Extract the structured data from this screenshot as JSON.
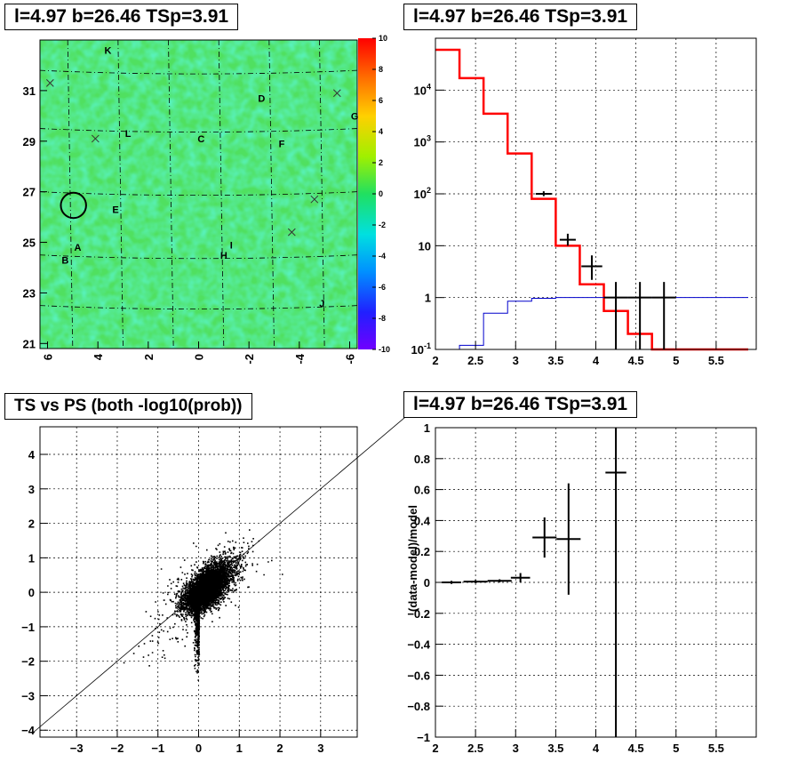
{
  "chart_data": [
    {
      "type": "heatmap",
      "title": "l=4.97 b=26.46 TSp=3.91",
      "xlabel": "",
      "ylabel": "",
      "xlim": [
        6.3,
        -6.3
      ],
      "ylim": [
        20.8,
        33.0
      ],
      "x_ticks": [
        "6",
        "4",
        "2",
        "0",
        "-2",
        "-4",
        "-6"
      ],
      "y_ticks": [
        "21",
        "23",
        "25",
        "27",
        "29",
        "31"
      ],
      "colorbar": {
        "min": -10,
        "max": 10,
        "ticks": [
          "10",
          "8",
          "6",
          "4",
          "2",
          "0",
          "-2",
          "-4",
          "-6",
          "-8",
          "-10"
        ]
      },
      "fill_level": 0.5,
      "sources": [
        {
          "label": "K",
          "l": 3.6,
          "b": 32.6
        },
        {
          "label": "D",
          "l": -2.5,
          "b": 30.7
        },
        {
          "label": "G",
          "l": -6.2,
          "b": 30.0
        },
        {
          "label": "L",
          "l": 2.8,
          "b": 29.3
        },
        {
          "label": "C",
          "l": -0.1,
          "b": 29.1
        },
        {
          "label": "F",
          "l": -3.3,
          "b": 28.9
        },
        {
          "label": "E",
          "l": 3.3,
          "b": 26.3
        },
        {
          "label": "A",
          "l": 4.8,
          "b": 24.8
        },
        {
          "label": "B",
          "l": 5.3,
          "b": 24.3
        },
        {
          "label": "I",
          "l": -1.3,
          "b": 24.9
        },
        {
          "label": "H",
          "l": -1.0,
          "b": 24.5
        },
        {
          "label": "J",
          "l": -4.9,
          "b": 22.6
        }
      ],
      "crosses": [
        {
          "l": 5.9,
          "b": 31.3
        },
        {
          "l": 4.1,
          "b": 29.1
        },
        {
          "l": -5.5,
          "b": 30.9
        },
        {
          "l": -4.6,
          "b": 26.7
        },
        {
          "l": -3.7,
          "b": 25.4
        }
      ],
      "circle": {
        "l": 4.97,
        "b": 26.46,
        "r": 0.5
      }
    },
    {
      "type": "line",
      "title": "l=4.97 b=26.46 TSp=3.91",
      "xlabel": "",
      "ylabel": "",
      "xlim": [
        2,
        6
      ],
      "ylim": [
        0.1,
        100000
      ],
      "log_y": true,
      "grid": true,
      "x_ticks": [
        "2",
        "2.5",
        "3",
        "3.5",
        "4",
        "4.5",
        "5",
        "5.5"
      ],
      "y_ticks": [
        "10^{-1}",
        "1",
        "10",
        "10^{2}",
        "10^{3}",
        "10^{4}"
      ],
      "bin_edges": [
        2,
        2.3,
        2.6,
        2.9,
        3.2,
        3.5,
        3.8,
        4.1,
        4.4,
        4.7,
        5.0,
        5.3,
        5.6,
        5.9
      ],
      "series": [
        {
          "values": [
            60000,
            17000,
            3500,
            600,
            80,
            10,
            1.8,
            0.55,
            0.2,
            0.1,
            0.1,
            0.1,
            0.1
          ],
          "color": "#ff0000"
        },
        {
          "values": [
            0.1,
            0.12,
            0.5,
            0.85,
            0.97,
            1.0,
            1.0,
            1.0,
            1.0,
            1.0,
            1.0,
            1.0,
            1.0
          ],
          "color": "#0000cc"
        }
      ],
      "data_points": [
        {
          "x": 3.35,
          "y": 100,
          "xerr": 0.1,
          "ylo": 90,
          "yhi": 112
        },
        {
          "x": 3.65,
          "y": 13,
          "xerr": 0.1,
          "ylo": 10,
          "yhi": 17
        },
        {
          "x": 3.95,
          "y": 4,
          "xerr": 0.13,
          "ylo": 2.2,
          "yhi": 6.5
        },
        {
          "x": 4.25,
          "y": 1,
          "xerr": 0.15,
          "ylo": 0.1,
          "yhi": 2.0
        },
        {
          "x": 4.55,
          "y": 1,
          "xerr": 0.15,
          "ylo": 0.1,
          "yhi": 2.0
        },
        {
          "x": 4.85,
          "y": 1,
          "xerr": 0.15,
          "ylo": 0.1,
          "yhi": 2.0
        }
      ]
    },
    {
      "type": "scatter",
      "title": "TS vs PS (both -log10(prob))",
      "xlabel": "",
      "ylabel": "",
      "xlim": [
        -3.9,
        3.9
      ],
      "ylim": [
        -4.2,
        4.8
      ],
      "grid": true,
      "x_ticks": [
        "-3",
        "-2",
        "-1",
        "0",
        "1",
        "2",
        "3"
      ],
      "y_ticks": [
        "-4",
        "-3",
        "-2",
        "-1",
        "0",
        "1",
        "2",
        "3",
        "4"
      ],
      "reference_line": {
        "slope": 1,
        "intercept": 0
      },
      "n_points": 6000
    },
    {
      "type": "scatter",
      "title": "l=4.97 b=26.46 TSp=3.91",
      "xlabel": "",
      "ylabel": "(data-model)/model",
      "xlim": [
        2,
        6
      ],
      "ylim": [
        -1,
        1
      ],
      "grid": true,
      "x_ticks": [
        "2",
        "2.5",
        "3",
        "3.5",
        "4",
        "4.5",
        "5",
        "5.5"
      ],
      "y_ticks": [
        "-1",
        "-0.8",
        "-0.6",
        "-0.4",
        "-0.2",
        "0",
        "0.2",
        "0.4",
        "0.6",
        "0.8",
        "1"
      ],
      "data_points": [
        {
          "x": 2.2,
          "y": 0.0,
          "xerr": 0.12,
          "yerr": 0.01
        },
        {
          "x": 2.5,
          "y": 0.005,
          "xerr": 0.15,
          "yerr": 0.01
        },
        {
          "x": 2.8,
          "y": 0.01,
          "xerr": 0.15,
          "yerr": 0.01
        },
        {
          "x": 3.06,
          "y": 0.03,
          "xerr": 0.12,
          "yerr": 0.03
        },
        {
          "x": 3.36,
          "y": 0.29,
          "xerr": 0.15,
          "yerr": 0.13
        },
        {
          "x": 3.66,
          "y": 0.28,
          "xerr": 0.15,
          "yerr": 0.36
        },
        {
          "x": 4.25,
          "y": 0.71,
          "xerr": 0.13,
          "yerr": 1.8
        }
      ]
    }
  ]
}
